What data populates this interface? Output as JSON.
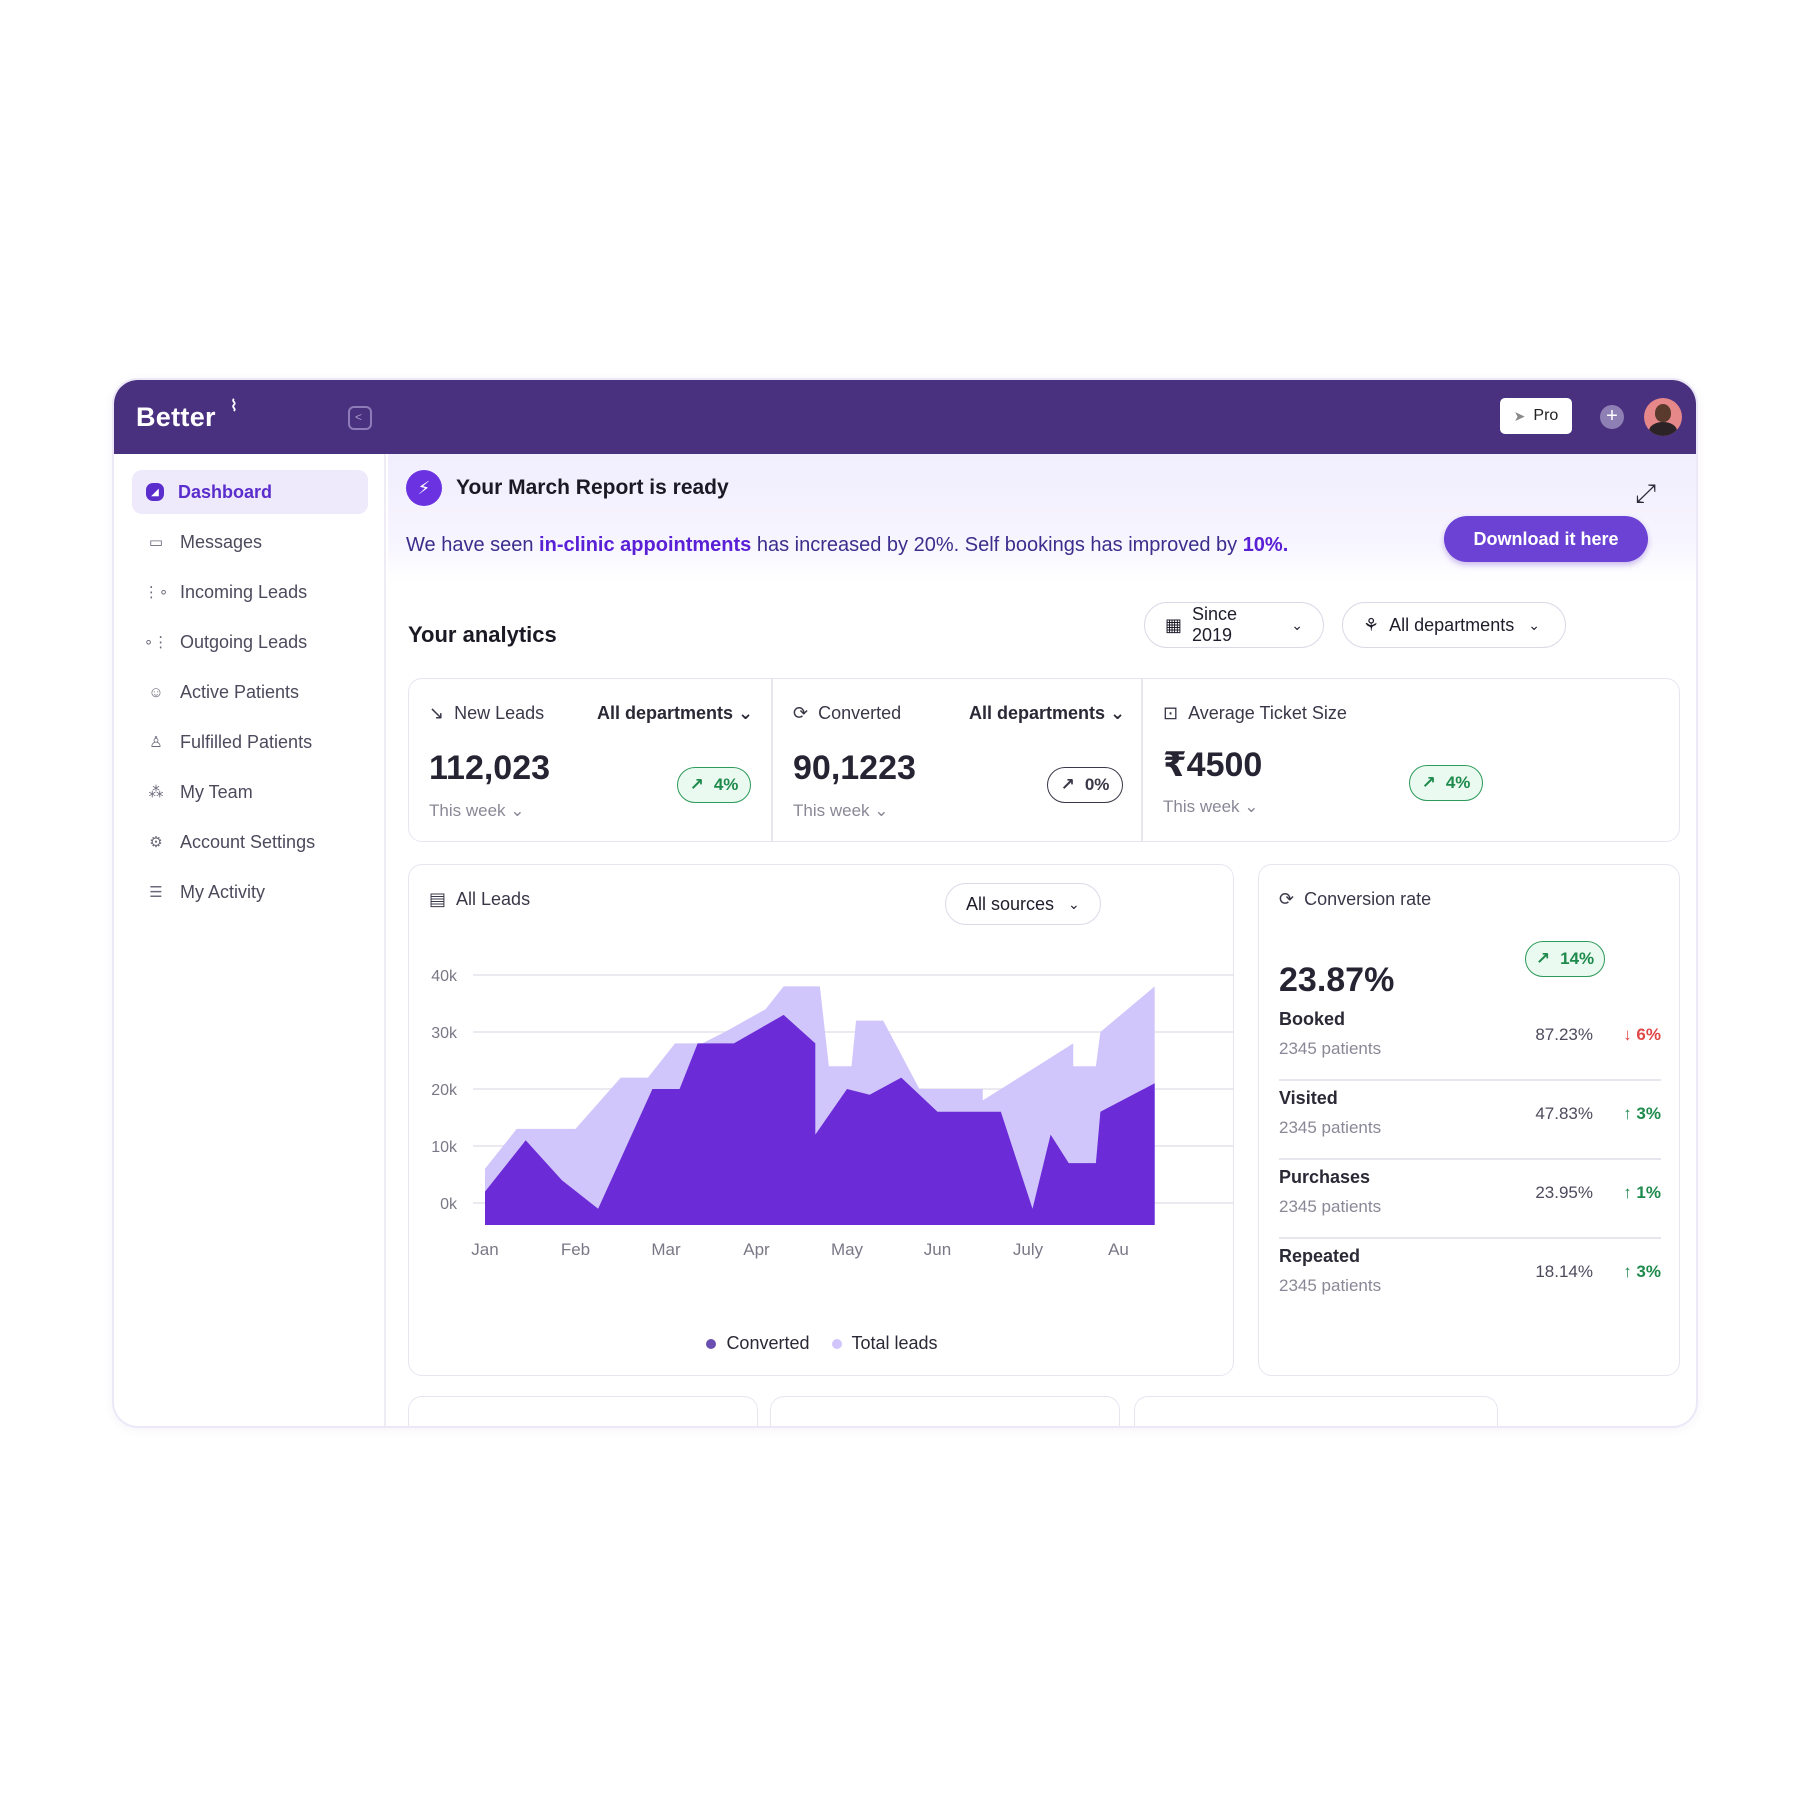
{
  "app": {
    "logo": "Better",
    "logo_mark": "⚡︎"
  },
  "topbar": {
    "pro_label": "Pro"
  },
  "sidebar": {
    "items": [
      {
        "label": "Dashboard",
        "icon": "dashboard-icon",
        "active": true
      },
      {
        "label": "Messages",
        "icon": "message-icon"
      },
      {
        "label": "Incoming Leads",
        "icon": "incoming-leads-icon"
      },
      {
        "label": "Outgoing Leads",
        "icon": "outgoing-leads-icon"
      },
      {
        "label": "Active Patients",
        "icon": "users-icon"
      },
      {
        "label": "Fulfilled Patients",
        "icon": "user-icon"
      },
      {
        "label": "My Team",
        "icon": "team-icon"
      },
      {
        "label": "Account Settings",
        "icon": "settings-icon"
      },
      {
        "label": "My Activity",
        "icon": "activity-icon"
      }
    ]
  },
  "banner": {
    "title": "Your March Report is ready",
    "msg_part1": "We have seen ",
    "msg_highlight1": "in-clinic appointments",
    "msg_part2": " has increased by 20%. Self bookings has improved by ",
    "msg_highlight2": "10%.",
    "download_label": "Download it here"
  },
  "analytics": {
    "title": "Your analytics",
    "filter_since": "Since 2019",
    "filter_dept": "All departments"
  },
  "stats": [
    {
      "label": "New Leads",
      "dept": "All departments",
      "value": "112,023",
      "period": "This week",
      "change": "4%"
    },
    {
      "label": "Converted",
      "dept": "All departments",
      "value": "90,1223",
      "period": "This week",
      "change": "0%"
    },
    {
      "label": "Average Ticket Size",
      "value": "₹4500",
      "period": "This week",
      "change": "4%"
    }
  ],
  "all_leads": {
    "title": "All Leads",
    "source_filter": "All sources",
    "legend": {
      "converted": "Converted",
      "total": "Total leads"
    }
  },
  "chart_data": {
    "type": "area",
    "yticks": [
      "40k",
      "30k",
      "20k",
      "10k",
      "0k"
    ],
    "categories": [
      "Jan",
      "Feb",
      "Mar",
      "Apr",
      "May",
      "Jun",
      "July",
      "Au"
    ],
    "ylim": [
      0,
      40
    ],
    "series": [
      {
        "name": "Total leads",
        "points": [
          [
            0,
            6
          ],
          [
            0.35,
            13
          ],
          [
            0.6,
            13
          ],
          [
            1,
            13
          ],
          [
            1.5,
            22
          ],
          [
            1.8,
            22
          ],
          [
            2.1,
            28
          ],
          [
            2.4,
            28
          ],
          [
            2.65,
            30
          ],
          [
            3.1,
            34
          ],
          [
            3.3,
            38
          ],
          [
            3.7,
            38
          ],
          [
            3.8,
            24
          ],
          [
            4.05,
            24
          ],
          [
            4.1,
            32
          ],
          [
            4.4,
            32
          ],
          [
            4.8,
            20
          ],
          [
            5.5,
            20
          ],
          [
            5.5,
            18
          ],
          [
            6.1,
            24
          ],
          [
            6.5,
            28
          ],
          [
            6.5,
            24
          ],
          [
            6.75,
            24
          ],
          [
            6.8,
            30
          ],
          [
            7.4,
            38
          ]
        ],
        "color": "#d1c6fb"
      },
      {
        "name": "Converted",
        "points": [
          [
            0,
            2
          ],
          [
            0.45,
            11
          ],
          [
            0.85,
            4
          ],
          [
            1.25,
            -1
          ],
          [
            1.85,
            20
          ],
          [
            2.15,
            20
          ],
          [
            2.35,
            28
          ],
          [
            2.75,
            28
          ],
          [
            3.3,
            33
          ],
          [
            3.65,
            28
          ],
          [
            3.65,
            12
          ],
          [
            4,
            20
          ],
          [
            4.25,
            19
          ],
          [
            4.6,
            22
          ],
          [
            5.0,
            16
          ],
          [
            5.7,
            16
          ],
          [
            6.05,
            -1
          ],
          [
            6.25,
            12
          ],
          [
            6.45,
            7
          ],
          [
            6.75,
            7
          ],
          [
            6.8,
            16
          ],
          [
            7.4,
            21
          ]
        ],
        "color": "#6b2bd6"
      }
    ]
  },
  "conversion": {
    "title": "Conversion rate",
    "value": "23.87%",
    "change": "14%",
    "rows": [
      {
        "name": "Booked",
        "sub": "2345 patients",
        "pct": "87.23%",
        "change": "6%",
        "dir": "down"
      },
      {
        "name": "Visited",
        "sub": "2345 patients",
        "pct": "47.83%",
        "change": "3%",
        "dir": "up"
      },
      {
        "name": "Purchases",
        "sub": "2345 patients",
        "pct": "23.95%",
        "change": "1%",
        "dir": "up"
      },
      {
        "name": "Repeated",
        "sub": "2345 patients",
        "pct": "18.14%",
        "change": "3%",
        "dir": "up"
      }
    ]
  },
  "colors": {
    "topbar": "#4a3180",
    "accent": "#6b42d4",
    "green": "#1e8a4c",
    "red": "#e04848"
  }
}
